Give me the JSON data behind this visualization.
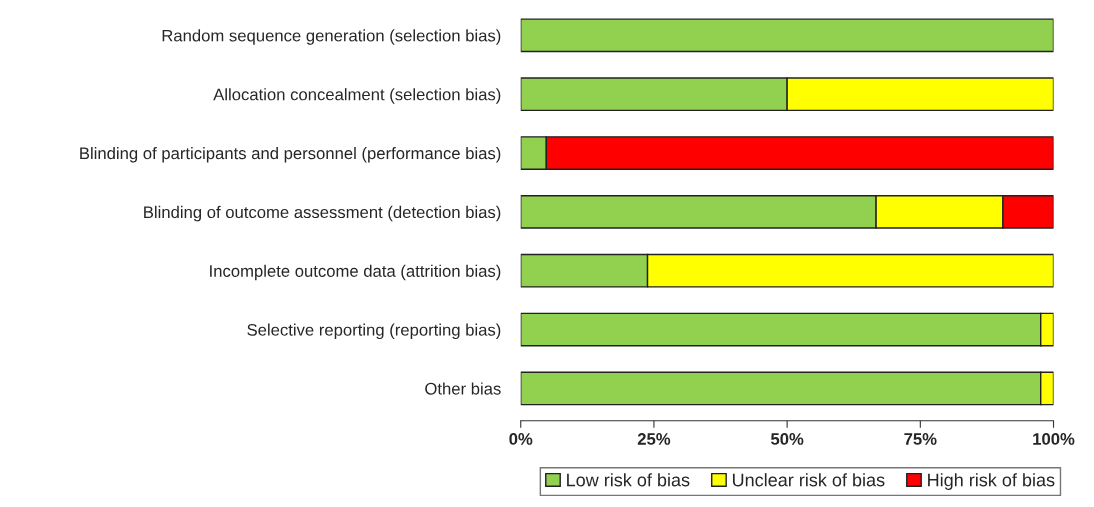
{
  "chart_data": {
    "type": "bar",
    "orientation": "horizontal",
    "stacked": true,
    "categories": [
      "Random sequence generation (selection bias)",
      "Allocation concealment (selection bias)",
      "Blinding of participants and personnel (performance bias)",
      "Blinding of outcome assessment (detection bias)",
      "Incomplete outcome data (attrition bias)",
      "Selective reporting (reporting bias)",
      "Other bias"
    ],
    "series": [
      {
        "name": "Low risk of bias",
        "color": "#92d050",
        "values": [
          100,
          50,
          4.8,
          66.7,
          23.8,
          97.6,
          97.6
        ]
      },
      {
        "name": "Unclear risk of bias",
        "color": "#ffff00",
        "values": [
          0,
          50,
          0,
          23.8,
          76.2,
          2.4,
          2.4
        ]
      },
      {
        "name": "High risk of bias",
        "color": "#ff0000",
        "values": [
          0,
          0,
          95.2,
          9.5,
          0,
          0,
          0
        ]
      }
    ],
    "xlim": [
      0,
      100
    ],
    "xticks": [
      {
        "value": 0,
        "label": "0%"
      },
      {
        "value": 25,
        "label": "25%"
      },
      {
        "value": 50,
        "label": "50%"
      },
      {
        "value": 75,
        "label": "75%"
      },
      {
        "value": 100,
        "label": "100%"
      }
    ],
    "grid": false,
    "legend": "bottom"
  }
}
